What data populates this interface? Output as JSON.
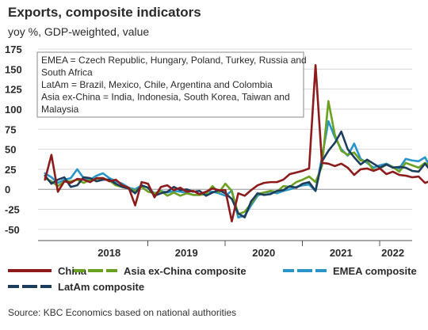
{
  "chart_data": {
    "type": "line",
    "title": "Exports, composite indicators",
    "subtitle": "yoy %, GDP-weighted, value",
    "source": "Source: KBC Economics based on national authorities",
    "ylim": [
      -60,
      175
    ],
    "yticks": [
      175,
      150,
      125,
      100,
      75,
      50,
      25,
      0,
      -25,
      -50
    ],
    "xlim": [
      2017.58,
      2022.42
    ],
    "xtick_labels": [
      {
        "label": "2018",
        "x": 2018.5
      },
      {
        "label": "2019",
        "x": 2019.5
      },
      {
        "label": "2020",
        "x": 2020.5
      },
      {
        "label": "2021",
        "x": 2021.5
      },
      {
        "label": "2022",
        "x": 2022.17
      }
    ],
    "year_boundaries": [
      2019,
      2020,
      2021,
      2022
    ],
    "annotation": [
      "EMEA = Czech Republic, Hungary, Poland, Turkey, Russia and",
      "South Africa",
      "LatAm = Brazil, Mexico, Chile, Argentina and Colombia",
      "Asia ex-China = India, Indonesia, South Korea, Taiwan and",
      "Malaysia"
    ],
    "series": [
      {
        "name": "China",
        "color": "#8e1b1b",
        "start": 2017.67,
        "values": [
          12,
          43,
          -3,
          10,
          8,
          13,
          12,
          9,
          14,
          14,
          10,
          12,
          5,
          2,
          -20,
          9,
          7,
          -10,
          3,
          5,
          -1,
          2,
          -3,
          -2,
          -6,
          -3,
          1,
          -1,
          -1,
          -40,
          -5,
          -8,
          -1,
          5,
          8,
          9,
          9,
          12,
          19,
          21,
          23,
          26,
          155,
          33,
          32,
          29,
          32,
          27,
          18,
          25,
          26,
          23,
          26,
          19,
          22,
          18,
          17,
          15,
          16,
          8,
          11,
          13,
          4,
          15,
          18
        ]
      },
      {
        "name": "Asia ex-China composite",
        "color": "#6aa121",
        "start": 2017.67,
        "values": [
          14,
          10,
          4,
          10,
          10,
          12,
          8,
          12,
          13,
          14,
          11,
          5,
          3,
          1,
          -2,
          3,
          -3,
          -5,
          -2,
          -8,
          -4,
          -8,
          -5,
          -7,
          -7,
          -6,
          4,
          -4,
          7,
          -2,
          -31,
          -28,
          -18,
          -6,
          -4,
          -2,
          -3,
          4,
          3,
          9,
          12,
          16,
          9,
          29,
          110,
          68,
          48,
          43,
          46,
          36,
          35,
          24,
          26,
          31,
          28,
          22,
          33,
          30,
          27,
          33,
          28,
          18,
          27,
          30,
          26,
          8
        ]
      },
      {
        "name": "EMEA composite",
        "color": "#2a95c8",
        "start": 2017.67,
        "values": [
          20,
          15,
          8,
          12,
          14,
          25,
          14,
          12,
          17,
          20,
          14,
          10,
          7,
          2,
          0,
          5,
          2,
          -5,
          -2,
          -4,
          -2,
          -3,
          -4,
          -7,
          -7,
          -3,
          -3,
          -5,
          -8,
          -2,
          -35,
          -33,
          -20,
          -8,
          -4,
          -3,
          -5,
          -2,
          0,
          3,
          5,
          6,
          -2,
          40,
          85,
          65,
          50,
          42,
          57,
          38,
          33,
          27,
          30,
          32,
          28,
          26,
          38,
          36,
          35,
          40,
          25,
          22,
          19,
          18
        ]
      },
      {
        "name": "LatAm composite",
        "color": "#1d3d5c",
        "start": 2017.67,
        "values": [
          17,
          7,
          12,
          15,
          3,
          5,
          15,
          14,
          10,
          12,
          12,
          7,
          3,
          1,
          -5,
          5,
          2,
          -8,
          -5,
          -3,
          3,
          -1,
          0,
          -3,
          -2,
          -8,
          -4,
          -1,
          -5,
          -12,
          -30,
          -35,
          -15,
          -5,
          -7,
          -6,
          -2,
          -1,
          4,
          2,
          7,
          9,
          -2,
          35,
          48,
          58,
          72,
          50,
          40,
          31,
          37,
          32,
          27,
          31,
          27,
          28,
          27,
          23,
          22,
          32,
          22,
          18,
          12,
          17
        ]
      }
    ]
  }
}
